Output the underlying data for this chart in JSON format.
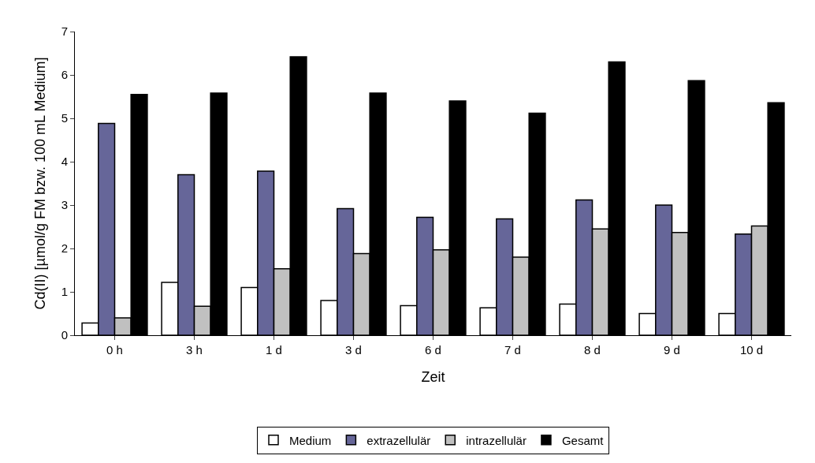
{
  "chart_data": {
    "type": "bar",
    "xlabel": "Zeit",
    "ylabel": "Cd(II) [µmol/g FM bzw. 100 mL Medium]",
    "categories": [
      "0 h",
      "3 h",
      "1 d",
      "3 d",
      "6 d",
      "7 d",
      "8 d",
      "9 d",
      "10 d"
    ],
    "series": [
      {
        "name": "Medium",
        "color": "#ffffff",
        "values": [
          0.28,
          1.22,
          1.1,
          0.8,
          0.68,
          0.63,
          0.72,
          0.5,
          0.5
        ]
      },
      {
        "name": "extrazellulär",
        "color": "#666699",
        "values": [
          4.88,
          3.7,
          3.78,
          2.92,
          2.72,
          2.68,
          3.12,
          3.0,
          2.33
        ]
      },
      {
        "name": "intrazellulär",
        "color": "#c0c0c0",
        "values": [
          0.4,
          0.67,
          1.53,
          1.88,
          1.97,
          1.8,
          2.45,
          2.37,
          2.52
        ]
      },
      {
        "name": "Gesamt",
        "color": "#000000",
        "values": [
          5.55,
          5.58,
          6.42,
          5.58,
          5.4,
          5.12,
          6.3,
          5.87,
          5.36
        ]
      }
    ],
    "ylim": [
      0,
      7
    ],
    "yticks": [
      0,
      1,
      2,
      3,
      4,
      5,
      6,
      7
    ],
    "legend": "bottom"
  }
}
